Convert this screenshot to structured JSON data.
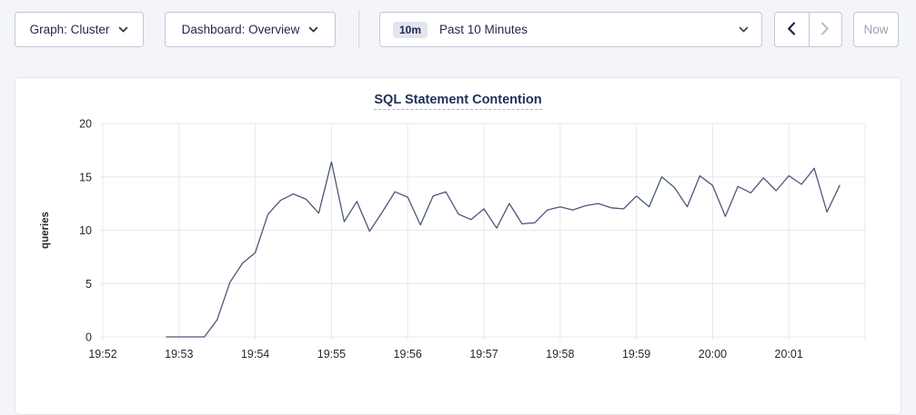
{
  "toolbar": {
    "graph_label": "Graph: Cluster",
    "dashboard_label": "Dashboard: Overview",
    "time_badge": "10m",
    "time_label": "Past 10 Minutes",
    "now_label": "Now"
  },
  "colors": {
    "page_background": "#f4f5f9",
    "card_background": "#ffffff",
    "control_border": "#c2c7d8",
    "text_navy": "#22294a",
    "title_navy": "#1e3058",
    "disabled_text": "#9ba3b7",
    "badge_background": "#e2e5f0"
  },
  "chart_data": {
    "type": "line",
    "title": "SQL Statement Contention",
    "xlabel": "",
    "ylabel": "queries",
    "ylim": [
      0,
      20
    ],
    "yticks": [
      0,
      5,
      10,
      15,
      20
    ],
    "x_start": "19:52:00",
    "x_end": "20:02:00",
    "xticks": [
      "19:52",
      "19:53",
      "19:54",
      "19:55",
      "19:56",
      "19:57",
      "19:58",
      "19:59",
      "20:00",
      "20:01"
    ],
    "grid": true,
    "legend": "none",
    "grid_color": "#e8e8eb",
    "line_color": "#4a5878",
    "points": [
      [
        "19:52:50",
        0
      ],
      [
        "19:53:00",
        0
      ],
      [
        "19:53:10",
        0
      ],
      [
        "19:53:20",
        0
      ],
      [
        "19:53:30",
        1.6
      ],
      [
        "19:53:40",
        5.1
      ],
      [
        "19:53:50",
        6.9
      ],
      [
        "19:54:00",
        7.9
      ],
      [
        "19:54:10",
        11.5
      ],
      [
        "19:54:20",
        12.8
      ],
      [
        "19:54:30",
        13.4
      ],
      [
        "19:54:40",
        12.9
      ],
      [
        "19:54:50",
        11.6
      ],
      [
        "19:55:00",
        16.4
      ],
      [
        "19:55:10",
        10.8
      ],
      [
        "19:55:20",
        12.7
      ],
      [
        "19:55:30",
        9.9
      ],
      [
        "19:55:40",
        11.7
      ],
      [
        "19:55:50",
        13.6
      ],
      [
        "19:56:00",
        13.1
      ],
      [
        "19:56:10",
        10.5
      ],
      [
        "19:56:20",
        13.2
      ],
      [
        "19:56:30",
        13.6
      ],
      [
        "19:56:40",
        11.5
      ],
      [
        "19:56:50",
        11.0
      ],
      [
        "19:57:00",
        12.0
      ],
      [
        "19:57:10",
        10.2
      ],
      [
        "19:57:20",
        12.5
      ],
      [
        "19:57:30",
        10.6
      ],
      [
        "19:57:40",
        10.7
      ],
      [
        "19:57:50",
        11.9
      ],
      [
        "19:58:00",
        12.2
      ],
      [
        "19:58:10",
        11.9
      ],
      [
        "19:58:20",
        12.3
      ],
      [
        "19:58:30",
        12.5
      ],
      [
        "19:58:40",
        12.1
      ],
      [
        "19:58:50",
        12.0
      ],
      [
        "19:59:00",
        13.2
      ],
      [
        "19:59:10",
        12.2
      ],
      [
        "19:59:20",
        15.0
      ],
      [
        "19:59:30",
        14.0
      ],
      [
        "19:59:40",
        12.2
      ],
      [
        "19:59:50",
        15.1
      ],
      [
        "20:00:00",
        14.2
      ],
      [
        "20:00:10",
        11.3
      ],
      [
        "20:00:20",
        14.1
      ],
      [
        "20:00:30",
        13.5
      ],
      [
        "20:00:40",
        14.9
      ],
      [
        "20:00:50",
        13.7
      ],
      [
        "20:01:00",
        15.1
      ],
      [
        "20:01:10",
        14.3
      ],
      [
        "20:01:20",
        15.8
      ],
      [
        "20:01:30",
        11.7
      ],
      [
        "20:01:40",
        14.2
      ]
    ]
  }
}
